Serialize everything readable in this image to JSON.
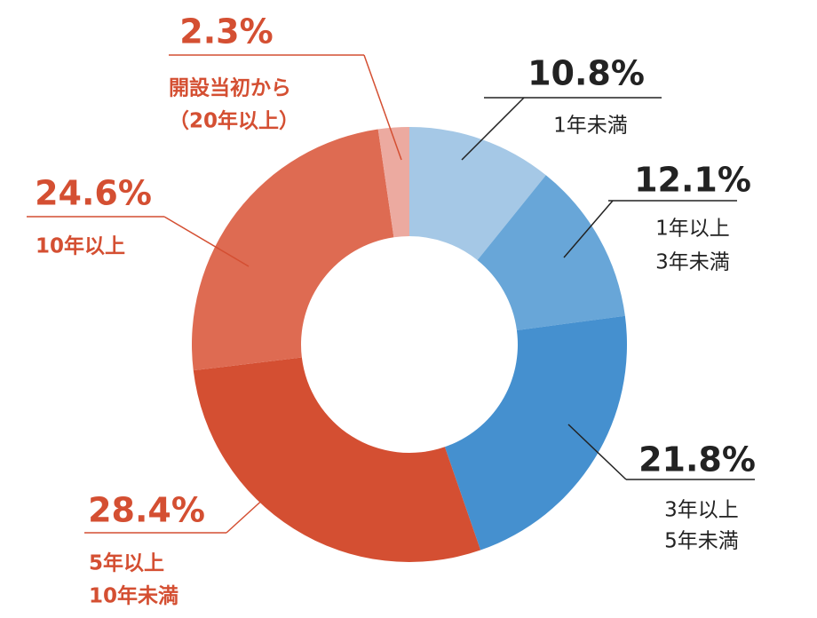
{
  "chart_data": {
    "type": "donut",
    "categories": [
      [
        "1年未満"
      ],
      [
        "1年以上",
        "3年未満"
      ],
      [
        "3年以上",
        "5年未満"
      ],
      [
        "5年以上",
        "10年未満"
      ],
      [
        "10年以上"
      ],
      [
        "開設当初から",
        "（20年以上）"
      ]
    ],
    "values": [
      10.8,
      12.1,
      21.8,
      28.4,
      24.6,
      2.3
    ],
    "value_labels": [
      "10.8%",
      "12.1%",
      "21.8%",
      "28.4%",
      "24.6%",
      "2.3%"
    ],
    "colors": [
      "#a5c8e6",
      "#68a6d8",
      "#4590cf",
      "#d44f32",
      "#de6b52",
      "#ecaaa0"
    ]
  }
}
